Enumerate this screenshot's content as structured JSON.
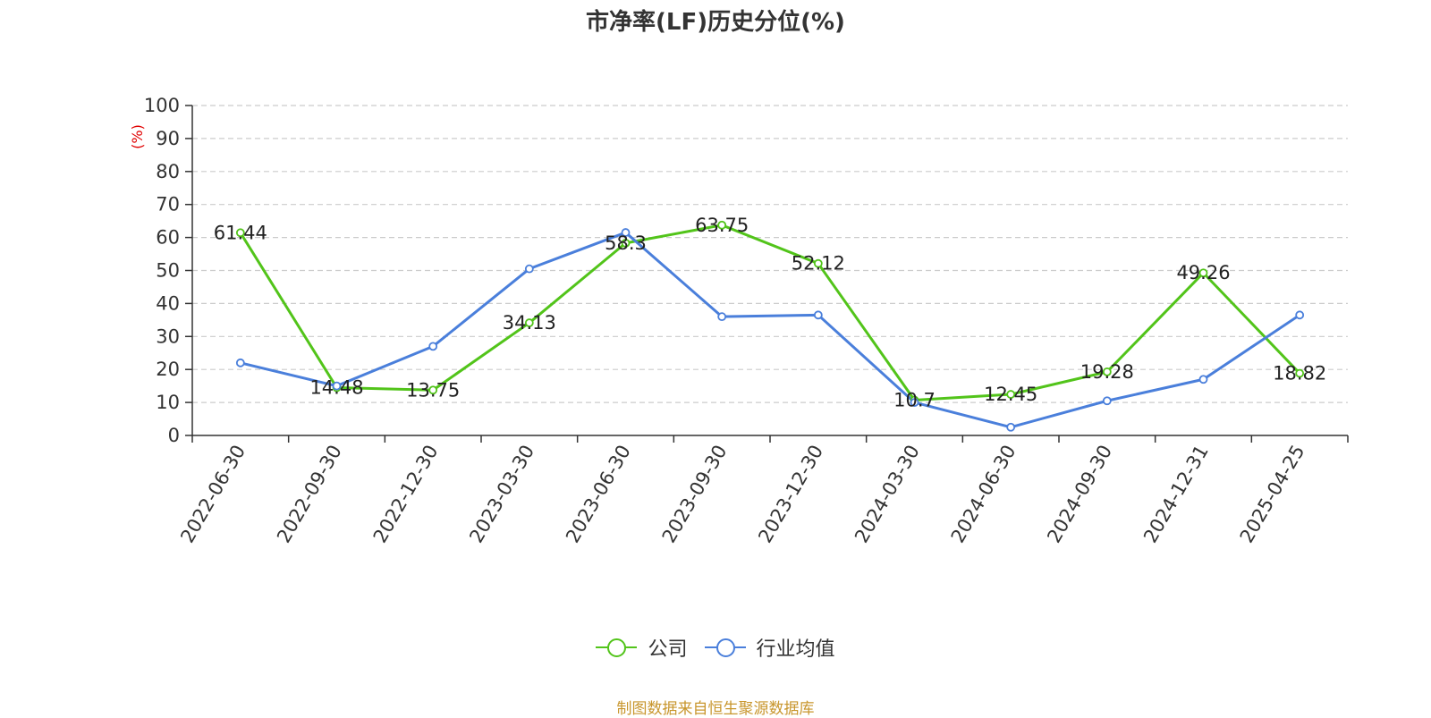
{
  "chart_data": {
    "type": "line",
    "title": "市净率(LF)历史分位(%)",
    "ylabel": "(%)",
    "ylim": [
      0,
      100
    ],
    "yticks": [
      0,
      10,
      20,
      30,
      40,
      50,
      60,
      70,
      80,
      90,
      100
    ],
    "grid": true,
    "categories": [
      "2022-06-30",
      "2022-09-30",
      "2022-12-30",
      "2023-03-30",
      "2023-06-30",
      "2023-09-30",
      "2023-12-30",
      "2024-03-30",
      "2024-06-30",
      "2024-09-30",
      "2024-12-31",
      "2025-04-25"
    ],
    "series": [
      {
        "name": "公司",
        "color": "#52c41a",
        "values": [
          61.44,
          14.48,
          13.75,
          34.13,
          58.3,
          63.75,
          52.12,
          10.7,
          12.45,
          19.28,
          49.26,
          18.82
        ],
        "labels": [
          "61.44",
          "14.48",
          "13.75",
          "34.13",
          "58.3",
          "63.75",
          "52.12",
          "10.7",
          "12.45",
          "19.28",
          "49.26",
          "18.82"
        ]
      },
      {
        "name": "行业均值",
        "color": "#4a7fdb",
        "values": [
          22.0,
          15.0,
          27.0,
          50.5,
          61.5,
          36.0,
          36.5,
          10.0,
          2.5,
          10.5,
          17.0,
          36.5
        ]
      }
    ],
    "legend_position": "bottom"
  },
  "source_note": "制图数据来自恒生聚源数据库",
  "colors": {
    "axis_label": "#e00000",
    "source": "#c8962d"
  }
}
